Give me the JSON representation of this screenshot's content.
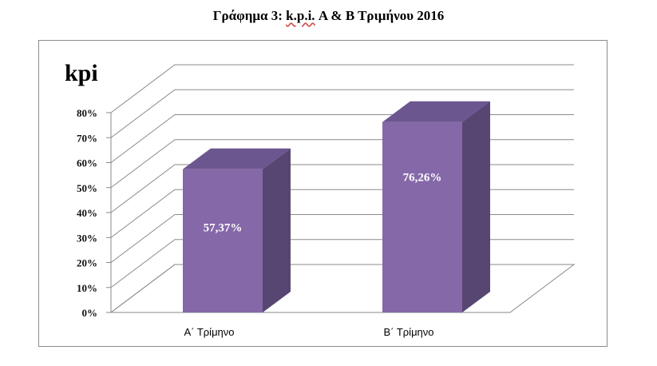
{
  "figure_title_prefix": "Γράφημα 3: ",
  "figure_title_kpi": "k.p.i.",
  "figure_title_suffix": " Α & Β Τριμήνου 2016",
  "chart_data": {
    "type": "bar",
    "title": "",
    "ylabel": "kpi",
    "xlabel": "",
    "categories": [
      "Α΄ Τρίμηνο",
      "Β΄ Τρίμηνο"
    ],
    "values": [
      57.37,
      76.26
    ],
    "data_labels": [
      "57,37%",
      "76,26%"
    ],
    "ylim": [
      0,
      80
    ],
    "yticks": [
      0,
      10,
      20,
      30,
      40,
      50,
      60,
      70,
      80
    ],
    "ytick_labels": [
      "0%",
      "10%",
      "20%",
      "30%",
      "40%",
      "50%",
      "60%",
      "70%",
      "80%"
    ],
    "grid": true,
    "style": "3d-column",
    "colors": {
      "front": "#8568a8",
      "side": "#574672",
      "top": "#6c5690"
    }
  }
}
